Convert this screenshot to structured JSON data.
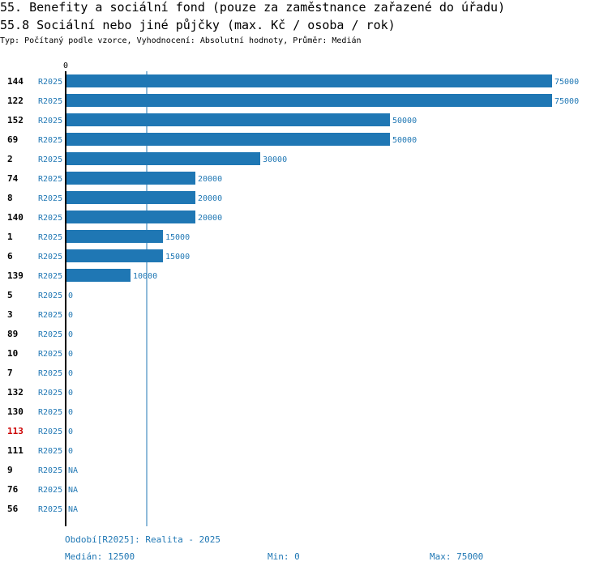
{
  "header": {
    "title": "55. Benefity a sociální fond (pouze za zaměstnance zařazené do úřadu)",
    "subtitle": "55.8 Sociální nebo jiné půjčky (max. Kč / osoba / rok)",
    "type_line": "Typ: Počítaný podle vzorce, Vyhodnocení: Absolutní hodnoty, Průměr: Medián"
  },
  "colors": {
    "bar": "#1f77b4",
    "label": "#1f77b4",
    "id_default": "#000000",
    "id_highlight": "#cc0000",
    "axis": "#000000"
  },
  "chart_data": {
    "type": "bar",
    "orientation": "horizontal",
    "axis_tick_label": "0",
    "xlim": [
      0,
      75000
    ],
    "median": 12500,
    "rows": [
      {
        "id": "144",
        "period": "R2025",
        "value": 75000,
        "label": "75000",
        "highlight": false
      },
      {
        "id": "122",
        "period": "R2025",
        "value": 75000,
        "label": "75000",
        "highlight": false
      },
      {
        "id": "152",
        "period": "R2025",
        "value": 50000,
        "label": "50000",
        "highlight": false
      },
      {
        "id": "69",
        "period": "R2025",
        "value": 50000,
        "label": "50000",
        "highlight": false
      },
      {
        "id": "2",
        "period": "R2025",
        "value": 30000,
        "label": "30000",
        "highlight": false
      },
      {
        "id": "74",
        "period": "R2025",
        "value": 20000,
        "label": "20000",
        "highlight": false
      },
      {
        "id": "8",
        "period": "R2025",
        "value": 20000,
        "label": "20000",
        "highlight": false
      },
      {
        "id": "140",
        "period": "R2025",
        "value": 20000,
        "label": "20000",
        "highlight": false
      },
      {
        "id": "1",
        "period": "R2025",
        "value": 15000,
        "label": "15000",
        "highlight": false
      },
      {
        "id": "6",
        "period": "R2025",
        "value": 15000,
        "label": "15000",
        "highlight": false
      },
      {
        "id": "139",
        "period": "R2025",
        "value": 10000,
        "label": "10000",
        "highlight": false
      },
      {
        "id": "5",
        "period": "R2025",
        "value": 0,
        "label": "0",
        "highlight": false
      },
      {
        "id": "3",
        "period": "R2025",
        "value": 0,
        "label": "0",
        "highlight": false
      },
      {
        "id": "89",
        "period": "R2025",
        "value": 0,
        "label": "0",
        "highlight": false
      },
      {
        "id": "10",
        "period": "R2025",
        "value": 0,
        "label": "0",
        "highlight": false
      },
      {
        "id": "7",
        "period": "R2025",
        "value": 0,
        "label": "0",
        "highlight": false
      },
      {
        "id": "132",
        "period": "R2025",
        "value": 0,
        "label": "0",
        "highlight": false
      },
      {
        "id": "130",
        "period": "R2025",
        "value": 0,
        "label": "0",
        "highlight": false
      },
      {
        "id": "113",
        "period": "R2025",
        "value": 0,
        "label": "0",
        "highlight": true
      },
      {
        "id": "111",
        "period": "R2025",
        "value": 0,
        "label": "0",
        "highlight": false
      },
      {
        "id": "9",
        "period": "R2025",
        "value": null,
        "label": "NA",
        "highlight": false
      },
      {
        "id": "76",
        "period": "R2025",
        "value": null,
        "label": "NA",
        "highlight": false
      },
      {
        "id": "56",
        "period": "R2025",
        "value": null,
        "label": "NA",
        "highlight": false
      }
    ]
  },
  "footer": {
    "period_note": "Období[R2025]: Realita - 2025",
    "median_text": "Medián: 12500",
    "min_text": "Min: 0",
    "max_text": "Max: 75000"
  }
}
